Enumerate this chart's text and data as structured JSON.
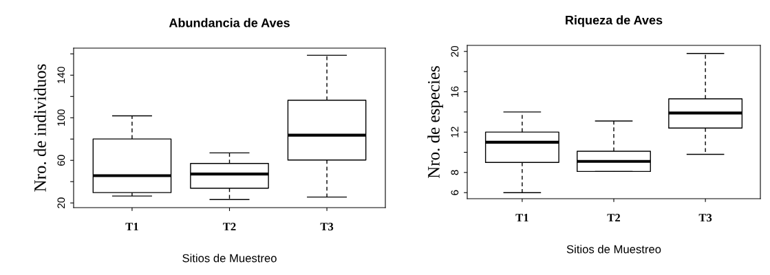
{
  "chart_data": [
    {
      "type": "box",
      "title": "Abundancia de Aves",
      "xlabel": "Sitios de Muestreo",
      "ylabel": "Nro. de individuos",
      "categories": [
        "T1",
        "T2",
        "T3"
      ],
      "boxes": [
        {
          "low": 26.5,
          "q1": 29.7,
          "median": 45.6,
          "q3": 80.1,
          "high": 101.8
        },
        {
          "low": 23.2,
          "q1": 33.8,
          "median": 47.2,
          "q3": 57.1,
          "high": 67.0
        },
        {
          "low": 25.5,
          "q1": 60.3,
          "median": 83.6,
          "q3": 116.5,
          "high": 158.7
        }
      ],
      "ylim": [
        15.6,
        165.4
      ],
      "yticks": [
        20,
        {
          "value": 40,
          "label": null
        },
        60,
        {
          "value": 80,
          "label": null
        },
        100,
        {
          "value": 120,
          "label": null
        },
        140,
        {
          "value": 160,
          "label": null
        }
      ]
    },
    {
      "type": "box",
      "title": "Riqueza de Aves",
      "xlabel": "Sitios de Muestreo",
      "ylabel": "Nro. de especies",
      "categories": [
        "T1",
        "T2",
        "T3"
      ],
      "boxes": [
        {
          "low": 6.0,
          "q1": 9.0,
          "median": 11.0,
          "q3": 12.0,
          "high": 14.0
        },
        {
          "low": 8.1,
          "q1": 8.1,
          "median": 9.1,
          "q3": 10.1,
          "high": 13.1
        },
        {
          "low": 9.8,
          "q1": 12.4,
          "median": 13.9,
          "q3": 15.3,
          "high": 19.8
        }
      ],
      "ylim": [
        5.4,
        20.6
      ],
      "yticks": [
        6,
        8,
        {
          "value": 10,
          "label": null
        },
        12,
        {
          "value": 14,
          "label": null
        },
        16,
        {
          "value": 18,
          "label": null
        },
        20
      ]
    }
  ]
}
